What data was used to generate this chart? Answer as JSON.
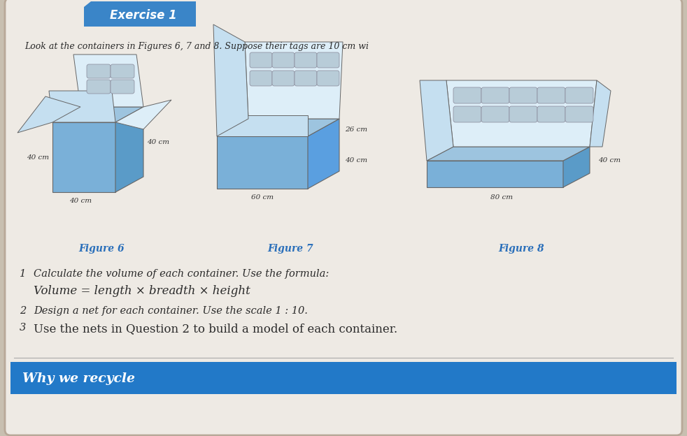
{
  "bg_color": "#c8bfb0",
  "page_bg": "#eeeae4",
  "exercise_box_color": "#3a85c8",
  "exercise_text": "Exercise 1",
  "header_line1": "Look at the containers in Figures 6, 7 and 8. Suppose their tags are 10 cm wi",
  "fig6_label": "Figure 6",
  "fig7_label": "Figure 7",
  "fig8_label": "Figure 8",
  "label_color": "#2a6fba",
  "q1_num": "1",
  "q1_text": "Calculate the volume of each container. Use the formula:",
  "q1_sub": "Volume = length × breadth × height",
  "q2_num": "2",
  "q2_text": "Design a net for each container. Use the scale 1 : 10.",
  "q3_num": "3",
  "q3_text": "Use the nets in Question 2 to build a model of each container.",
  "footer_text": "Why we recycle",
  "footer_bg": "#2279c8",
  "footer_text_color": "#ffffff",
  "box_very_light": "#ddeef8",
  "box_light_blue": "#c5dff0",
  "box_mid_blue": "#9dc4df",
  "box_blue": "#7ab0d8",
  "box_dark_blue": "#5a9bc8",
  "box_deeper": "#4a88b8",
  "line_color": "#666666",
  "text_color": "#2a2a2a",
  "dim_color": "#333333",
  "can_color": "#b8ccd8",
  "can_edge": "#888899"
}
